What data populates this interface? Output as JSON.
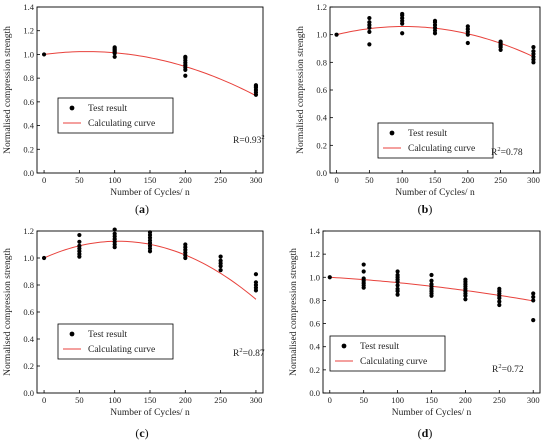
{
  "chart_data": [
    {
      "type": "scatter",
      "panel_label": "(a)",
      "xlabel": "Number of Cycles/ n",
      "ylabel": "Normalised compression strength",
      "xlim": [
        -10,
        310
      ],
      "ylim": [
        0,
        1.4
      ],
      "xticks": [
        0,
        50,
        100,
        150,
        200,
        250,
        300
      ],
      "yticks": [
        0.0,
        0.2,
        0.4,
        0.6,
        0.8,
        1.0,
        1.2,
        1.4
      ],
      "legend": [
        "Test result",
        "Calculating curve"
      ],
      "legend_position": "lower-left",
      "annotation": {
        "base": "R=0.93",
        "sup": "2"
      },
      "series": [
        {
          "name": "Test result",
          "points": [
            [
              0,
              1.0
            ],
            [
              100,
              0.98
            ],
            [
              100,
              1.01
            ],
            [
              100,
              1.02
            ],
            [
              100,
              1.03
            ],
            [
              100,
              1.04
            ],
            [
              100,
              1.05
            ],
            [
              100,
              1.06
            ],
            [
              200,
              0.82
            ],
            [
              200,
              0.87
            ],
            [
              200,
              0.89
            ],
            [
              200,
              0.91
            ],
            [
              200,
              0.93
            ],
            [
              200,
              0.95
            ],
            [
              200,
              0.97
            ],
            [
              200,
              0.98
            ],
            [
              300,
              0.66
            ],
            [
              300,
              0.68
            ],
            [
              300,
              0.7
            ],
            [
              300,
              0.72
            ],
            [
              300,
              0.73
            ],
            [
              300,
              0.74
            ]
          ]
        },
        {
          "name": "Calculating curve",
          "curve": {
            "kind": "quadratic",
            "a": -6.5e-06,
            "b": 0.00079,
            "c": 1.0
          }
        }
      ]
    },
    {
      "type": "scatter",
      "panel_label": "(b)",
      "xlabel": "Number of Cycles/ n",
      "ylabel": "Normalised compression strength",
      "xlim": [
        -10,
        310
      ],
      "ylim": [
        0,
        1.2
      ],
      "xticks": [
        0,
        50,
        100,
        150,
        200,
        250,
        300
      ],
      "yticks": [
        0.0,
        0.2,
        0.4,
        0.6,
        0.8,
        1.0,
        1.2
      ],
      "legend": [
        "Test result",
        "Calculating curve"
      ],
      "legend_position": "lower-center",
      "annotation": {
        "base": "R",
        "sup": "2",
        "rest": "=0.78"
      },
      "series": [
        {
          "name": "Test result",
          "points": [
            [
              0,
              1.0
            ],
            [
              50,
              0.93
            ],
            [
              50,
              1.02
            ],
            [
              50,
              1.05
            ],
            [
              50,
              1.07
            ],
            [
              50,
              1.09
            ],
            [
              50,
              1.12
            ],
            [
              100,
              1.01
            ],
            [
              100,
              1.08
            ],
            [
              100,
              1.1
            ],
            [
              100,
              1.12
            ],
            [
              100,
              1.14
            ],
            [
              100,
              1.15
            ],
            [
              150,
              1.01
            ],
            [
              150,
              1.03
            ],
            [
              150,
              1.05
            ],
            [
              150,
              1.07
            ],
            [
              150,
              1.09
            ],
            [
              150,
              1.1
            ],
            [
              200,
              0.94
            ],
            [
              200,
              1.0
            ],
            [
              200,
              1.02
            ],
            [
              200,
              1.04
            ],
            [
              200,
              1.06
            ],
            [
              250,
              0.89
            ],
            [
              250,
              0.91
            ],
            [
              250,
              0.92
            ],
            [
              250,
              0.93
            ],
            [
              250,
              0.94
            ],
            [
              250,
              0.95
            ],
            [
              300,
              0.8
            ],
            [
              300,
              0.82
            ],
            [
              300,
              0.84
            ],
            [
              300,
              0.86
            ],
            [
              300,
              0.88
            ],
            [
              300,
              0.91
            ]
          ]
        },
        {
          "name": "Calculating curve",
          "curve": {
            "kind": "quadratic",
            "a": -5.6e-06,
            "b": 0.00115,
            "c": 1.0
          }
        }
      ]
    },
    {
      "type": "scatter",
      "panel_label": "(c)",
      "xlabel": "Number of Cycles/ n",
      "ylabel": "Normalised compression strength",
      "xlim": [
        -10,
        310
      ],
      "ylim": [
        0,
        1.2
      ],
      "xticks": [
        0,
        50,
        100,
        150,
        200,
        250,
        300
      ],
      "yticks": [
        0.0,
        0.2,
        0.4,
        0.6,
        0.8,
        1.0,
        1.2
      ],
      "legend": [
        "Test result",
        "Calculating curve"
      ],
      "legend_position": "lower-left",
      "annotation": {
        "base": "R",
        "sup": "2",
        "rest": "=0.87"
      },
      "series": [
        {
          "name": "Test result",
          "points": [
            [
              0,
              1.0
            ],
            [
              50,
              1.01
            ],
            [
              50,
              1.03
            ],
            [
              50,
              1.05
            ],
            [
              50,
              1.07
            ],
            [
              50,
              1.09
            ],
            [
              50,
              1.12
            ],
            [
              50,
              1.17
            ],
            [
              100,
              1.08
            ],
            [
              100,
              1.1
            ],
            [
              100,
              1.12
            ],
            [
              100,
              1.14
            ],
            [
              100,
              1.16
            ],
            [
              100,
              1.18
            ],
            [
              100,
              1.21
            ],
            [
              150,
              1.05
            ],
            [
              150,
              1.07
            ],
            [
              150,
              1.09
            ],
            [
              150,
              1.11
            ],
            [
              150,
              1.13
            ],
            [
              150,
              1.15
            ],
            [
              150,
              1.17
            ],
            [
              150,
              1.19
            ],
            [
              200,
              1.0
            ],
            [
              200,
              1.02
            ],
            [
              200,
              1.04
            ],
            [
              200,
              1.06
            ],
            [
              200,
              1.08
            ],
            [
              200,
              1.1
            ],
            [
              250,
              0.91
            ],
            [
              250,
              0.94
            ],
            [
              250,
              0.96
            ],
            [
              250,
              0.98
            ],
            [
              250,
              1.01
            ],
            [
              300,
              0.76
            ],
            [
              300,
              0.78
            ],
            [
              300,
              0.8
            ],
            [
              300,
              0.82
            ],
            [
              300,
              0.88
            ]
          ]
        },
        {
          "name": "Calculating curve",
          "curve": {
            "kind": "quadratic",
            "a": -1.13e-05,
            "b": 0.00237,
            "c": 1.0
          }
        }
      ]
    },
    {
      "type": "scatter",
      "panel_label": "(d)",
      "xlabel": "Number of Cycles/ n",
      "ylabel": "Normalised compression strength",
      "xlim": [
        -10,
        310
      ],
      "ylim": [
        0,
        1.4
      ],
      "xticks": [
        0,
        50,
        100,
        150,
        200,
        250,
        300
      ],
      "yticks": [
        0.0,
        0.2,
        0.4,
        0.6,
        0.8,
        1.0,
        1.2,
        1.4
      ],
      "legend": [
        "Test result",
        "Calculating curve"
      ],
      "legend_position": "lower-left",
      "annotation": {
        "base": "R",
        "sup": "2",
        "rest": "=0.72"
      },
      "series": [
        {
          "name": "Test result",
          "points": [
            [
              0,
              1.0
            ],
            [
              50,
              0.91
            ],
            [
              50,
              0.93
            ],
            [
              50,
              0.95
            ],
            [
              50,
              0.97
            ],
            [
              50,
              0.99
            ],
            [
              50,
              1.05
            ],
            [
              50,
              1.11
            ],
            [
              100,
              0.85
            ],
            [
              100,
              0.88
            ],
            [
              100,
              0.9
            ],
            [
              100,
              0.93
            ],
            [
              100,
              0.96
            ],
            [
              100,
              0.98
            ],
            [
              100,
              1.0
            ],
            [
              100,
              1.02
            ],
            [
              100,
              1.05
            ],
            [
              150,
              0.84
            ],
            [
              150,
              0.86
            ],
            [
              150,
              0.88
            ],
            [
              150,
              0.9
            ],
            [
              150,
              0.92
            ],
            [
              150,
              0.94
            ],
            [
              150,
              0.97
            ],
            [
              150,
              1.02
            ],
            [
              200,
              0.81
            ],
            [
              200,
              0.84
            ],
            [
              200,
              0.86
            ],
            [
              200,
              0.88
            ],
            [
              200,
              0.9
            ],
            [
              200,
              0.92
            ],
            [
              200,
              0.94
            ],
            [
              200,
              0.96
            ],
            [
              200,
              0.98
            ],
            [
              250,
              0.76
            ],
            [
              250,
              0.79
            ],
            [
              250,
              0.82
            ],
            [
              250,
              0.84
            ],
            [
              250,
              0.86
            ],
            [
              250,
              0.88
            ],
            [
              250,
              0.9
            ],
            [
              300,
              0.63
            ],
            [
              300,
              0.8
            ],
            [
              300,
              0.83
            ],
            [
              300,
              0.86
            ]
          ]
        },
        {
          "name": "Calculating curve",
          "curve": {
            "kind": "quadratic",
            "a": -1.1e-06,
            "b": -0.00035,
            "c": 1.0
          }
        }
      ]
    }
  ]
}
